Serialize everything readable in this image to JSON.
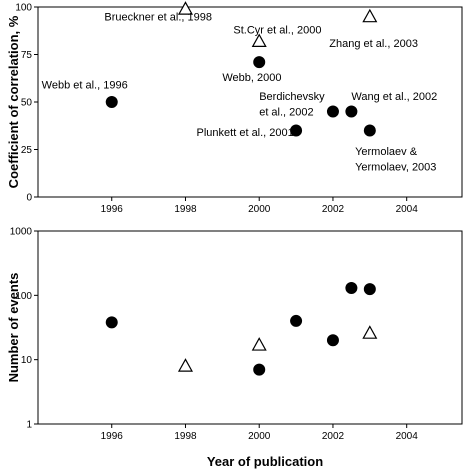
{
  "chart_data": [
    {
      "type": "scatter",
      "ylabel": "Coefficient of correlation, %",
      "xlabel": "",
      "xlim": [
        1994,
        2005.5
      ],
      "ylim": [
        0,
        100
      ],
      "xticks": [
        1996,
        1998,
        2000,
        2002,
        2004
      ],
      "yticks": [
        0,
        25,
        50,
        75,
        100
      ],
      "xtick_labels": [
        "1996",
        "1998",
        "2000",
        "2002",
        "2004"
      ],
      "ytick_labels": [
        "0",
        "25",
        "50",
        "75",
        "100"
      ],
      "grid": false,
      "series": [
        {
          "marker": "filled-circle",
          "color": "#000000",
          "points": [
            {
              "x": 1996,
              "y": 50
            },
            {
              "x": 2000,
              "y": 71
            },
            {
              "x": 2001,
              "y": 35
            },
            {
              "x": 2002,
              "y": 45
            },
            {
              "x": 2002.5,
              "y": 45
            },
            {
              "x": 2003,
              "y": 35
            }
          ]
        },
        {
          "marker": "open-triangle",
          "color": "#000000",
          "points": [
            {
              "x": 1998,
              "y": 99
            },
            {
              "x": 2000,
              "y": 82
            },
            {
              "x": 2003,
              "y": 95
            }
          ]
        }
      ],
      "annotations": [
        {
          "text": "Brueckner et al., 1998",
          "x": 1995.8,
          "y": 93
        },
        {
          "text": "St.Cyr et al., 2000",
          "x": 1999.3,
          "y": 86
        },
        {
          "text": "Zhang et al., 2003",
          "x": 2001.9,
          "y": 79
        },
        {
          "text": "Webb, 2000",
          "x": 1999.0,
          "y": 61
        },
        {
          "text": "Webb et al., 1996",
          "x": 1994.1,
          "y": 57
        },
        {
          "text": "Berdichevsky",
          "x": 2000.0,
          "y": 51
        },
        {
          "text": "et al., 2002",
          "x": 2000.0,
          "y": 43
        },
        {
          "text": "Wang et al., 2002",
          "x": 2002.5,
          "y": 51
        },
        {
          "text": "Plunkett et al., 2001",
          "x": 1998.3,
          "y": 32
        },
        {
          "text": "Yermolaev &",
          "x": 2002.6,
          "y": 22
        },
        {
          "text": "Yermolaev, 2003",
          "x": 2002.6,
          "y": 14
        }
      ]
    },
    {
      "type": "scatter",
      "ylabel": "Number of events",
      "xlabel": "Year of publication",
      "xlim": [
        1994,
        2005.5
      ],
      "ylim": [
        1,
        1000
      ],
      "yscale": "log",
      "xticks": [
        1996,
        1998,
        2000,
        2002,
        2004
      ],
      "yticks": [
        1,
        10,
        100,
        1000
      ],
      "xtick_labels": [
        "1996",
        "1998",
        "2000",
        "2002",
        "2004"
      ],
      "ytick_labels": [
        "1",
        "10",
        "100",
        "1000"
      ],
      "grid": false,
      "series": [
        {
          "marker": "filled-circle",
          "color": "#000000",
          "points": [
            {
              "x": 1996,
              "y": 38
            },
            {
              "x": 2000,
              "y": 7
            },
            {
              "x": 2001,
              "y": 40
            },
            {
              "x": 2002,
              "y": 20
            },
            {
              "x": 2002.5,
              "y": 130
            },
            {
              "x": 2003,
              "y": 125
            }
          ]
        },
        {
          "marker": "open-triangle",
          "color": "#000000",
          "points": [
            {
              "x": 1998,
              "y": 8
            },
            {
              "x": 2000,
              "y": 17
            },
            {
              "x": 2003,
              "y": 26
            }
          ]
        }
      ],
      "annotations": []
    }
  ]
}
